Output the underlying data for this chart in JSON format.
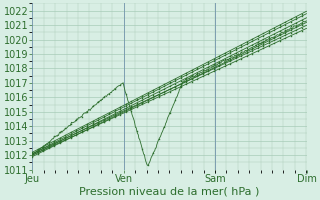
{
  "xlabel": "Pression niveau de la mer( hPa )",
  "ylim": [
    1011,
    1022.5
  ],
  "yticks": [
    1011,
    1012,
    1013,
    1014,
    1015,
    1016,
    1017,
    1018,
    1019,
    1020,
    1021,
    1022
  ],
  "xtick_labels": [
    "Jeu",
    "Ven",
    "Sam",
    "Dim"
  ],
  "xtick_positions": [
    0,
    0.333,
    0.667,
    1.0
  ],
  "xlim": [
    0,
    1.0
  ],
  "background_color": "#d8eee4",
  "grid_color": "#a8ccb8",
  "line_color": "#2d6e2d",
  "marker_color": "#2d6e2d",
  "label_fontsize": 8,
  "tick_fontsize": 7,
  "day_line_color": "#8899aa",
  "n_points": 400
}
